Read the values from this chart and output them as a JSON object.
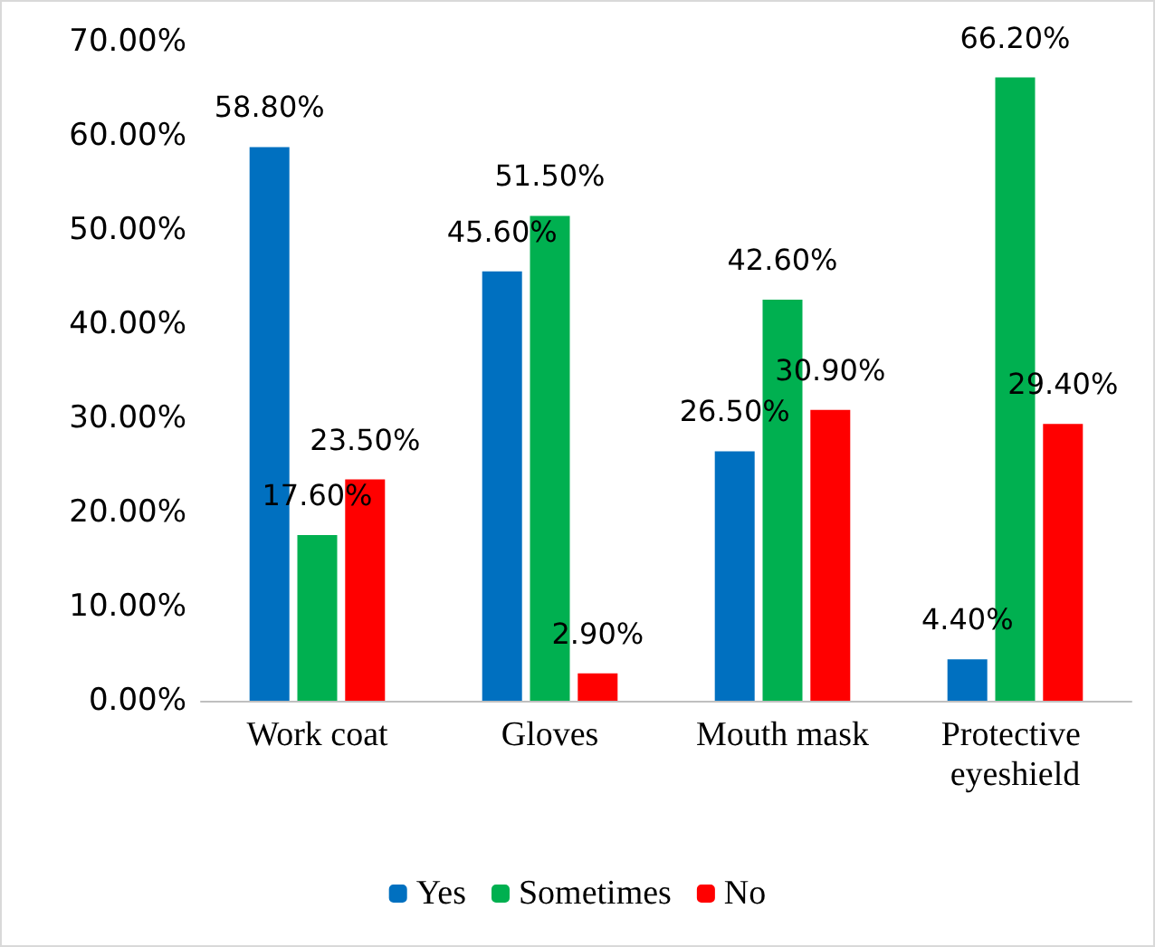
{
  "chart_data": {
    "type": "bar",
    "categories": [
      "Work coat",
      "Gloves",
      "Mouth mask",
      "Protective eyeshield"
    ],
    "series": [
      {
        "name": "Yes",
        "color": "#0070c0",
        "values": [
          58.8,
          45.6,
          26.5,
          4.4
        ],
        "value_labels": [
          "58.80%",
          "45.60%",
          "26.50%",
          "4.40%"
        ]
      },
      {
        "name": "Sometimes",
        "color": "#00b050",
        "values": [
          17.6,
          51.5,
          42.6,
          66.2
        ],
        "value_labels": [
          "17.60%",
          "51.50%",
          "42.60%",
          "66.20%"
        ]
      },
      {
        "name": "No",
        "color": "#ff0000",
        "values": [
          23.5,
          2.9,
          30.9,
          29.4
        ],
        "value_labels": [
          "23.50%",
          "2.90%",
          "30.90%",
          "29.40%"
        ]
      }
    ],
    "ylim": [
      0,
      70
    ],
    "yticks": [
      {
        "value": 0,
        "label": "0.00%"
      },
      {
        "value": 10,
        "label": "10.00%"
      },
      {
        "value": 20,
        "label": "20.00%"
      },
      {
        "value": 30,
        "label": "30.00%"
      },
      {
        "value": 40,
        "label": "40.00%"
      },
      {
        "value": 50,
        "label": "50.00%"
      },
      {
        "value": 60,
        "label": "60.00%"
      },
      {
        "value": 70,
        "label": "70.00%"
      }
    ],
    "grid": false,
    "legend": "bottom"
  }
}
